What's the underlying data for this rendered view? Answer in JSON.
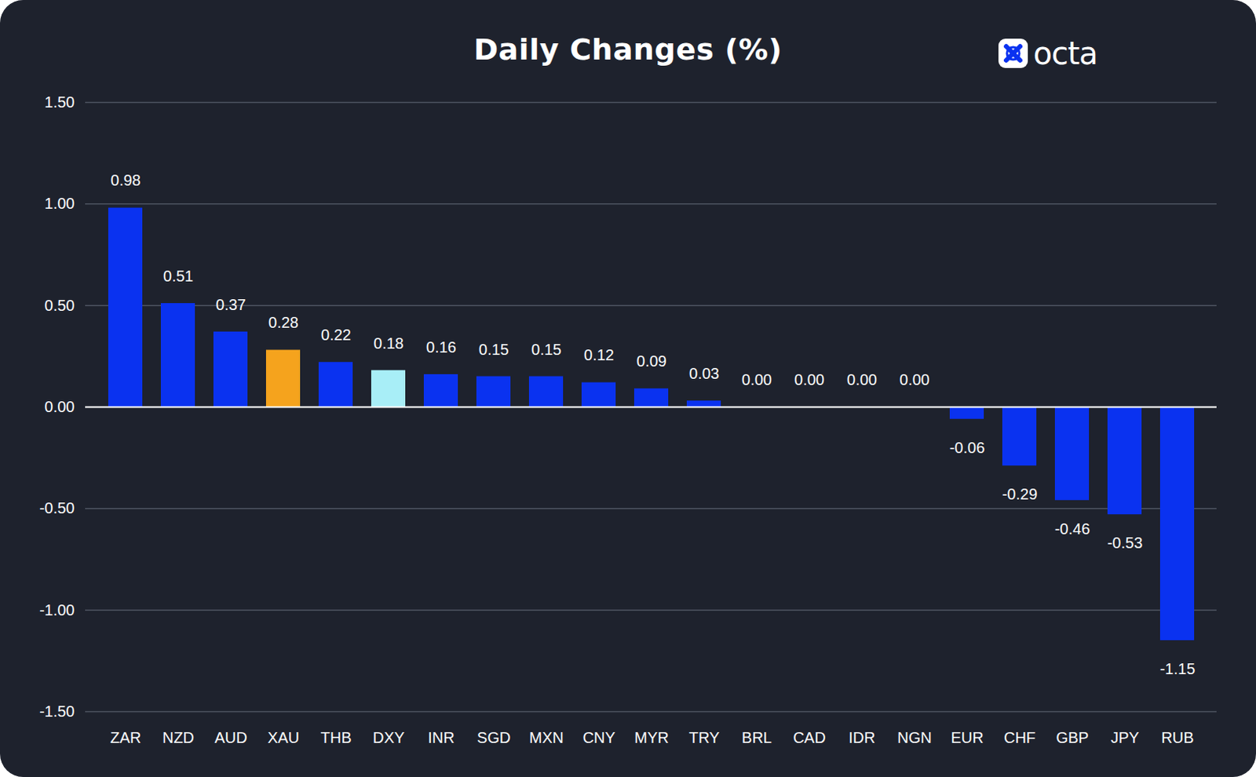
{
  "chart_data": {
    "type": "bar",
    "title": "Daily Changes (%)",
    "annotations": [
      "octa"
    ],
    "categories": [
      "ZAR",
      "NZD",
      "AUD",
      "XAU",
      "THB",
      "DXY",
      "INR",
      "SGD",
      "MXN",
      "CNY",
      "MYR",
      "TRY",
      "BRL",
      "CAD",
      "IDR",
      "NGN",
      "EUR",
      "CHF",
      "GBP",
      "JPY",
      "RUB"
    ],
    "values": [
      0.98,
      0.51,
      0.37,
      0.28,
      0.22,
      0.18,
      0.16,
      0.15,
      0.15,
      0.12,
      0.09,
      0.03,
      0,
      0,
      0,
      0,
      -0.06,
      -0.29,
      -0.46,
      -0.53,
      -1.15
    ],
    "value_labels": [
      "0.98",
      "0.51",
      "0.37",
      "0.28",
      "0.22",
      "0.18",
      "0.16",
      "0.15",
      "0.15",
      "0.12",
      "0.09",
      "0.03",
      "0.00",
      "0.00",
      "0.00",
      "0.00",
      "-0.06",
      "-0.29",
      "-0.46",
      "-0.53",
      "-1.15"
    ],
    "colors": [
      "#0a32f0",
      "#0a32f0",
      "#0a32f0",
      "#f5a31d",
      "#0a32f0",
      "#a8eef7",
      "#0a32f0",
      "#0a32f0",
      "#0a32f0",
      "#0a32f0",
      "#0a32f0",
      "#0a32f0",
      "#0a32f0",
      "#0a32f0",
      "#0a32f0",
      "#0a32f0",
      "#0a32f0",
      "#0a32f0",
      "#0a32f0",
      "#0a32f0",
      "#0a32f0"
    ],
    "ylim": [
      -1.5,
      1.5
    ],
    "yticks": [
      {
        "value": -1.5,
        "label": "-1.50"
      },
      {
        "value": -1,
        "label": "-1.00"
      },
      {
        "value": -0.5,
        "label": "-0.50"
      },
      {
        "value": 0,
        "label": "0.00"
      },
      {
        "value": 0.5,
        "label": "0.50"
      },
      {
        "value": 1,
        "label": "1.00"
      },
      {
        "value": 1.5,
        "label": "1.50"
      }
    ],
    "grid": true,
    "data_labels": true
  }
}
